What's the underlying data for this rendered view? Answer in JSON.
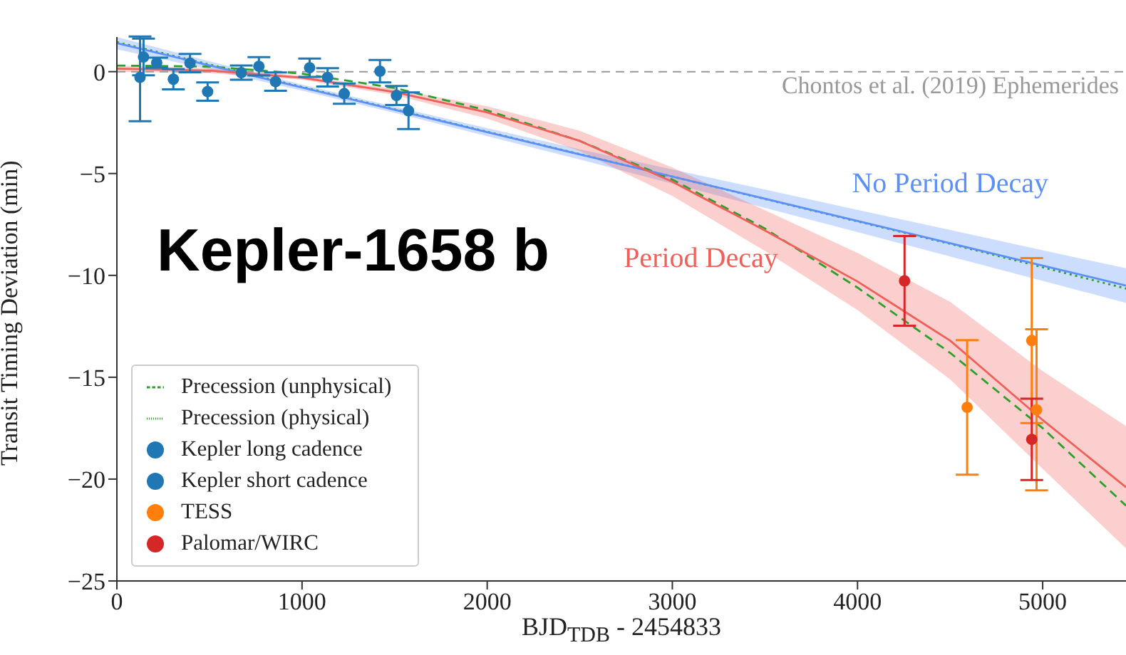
{
  "chart_data": {
    "type": "line",
    "annotations": [
      "Kepler-1658 b"
    ],
    "xlabel": "BJD$_{TDB}$ - 2454833",
    "ylabel": "Transit Timing Deviation (min)",
    "xlim": [
      0,
      5450
    ],
    "xticks": [
      0,
      1000,
      2000,
      3000,
      4000,
      5000
    ],
    "ylim": [
      -25,
      1.7
    ],
    "yticks": [
      {
        "value": -25,
        "label": "−25"
      },
      {
        "value": -20,
        "label": "−20"
      },
      {
        "value": -15,
        "label": "−15"
      },
      {
        "value": -10,
        "label": "−10"
      },
      {
        "value": -5,
        "label": "−5"
      },
      0
    ],
    "legend": "bottom left",
    "ref_lines": [
      {
        "axis": "y",
        "value": 0,
        "label": "Chontos et al. (2019) Ephemerides",
        "color": "#999999",
        "line_style": "dashed"
      }
    ],
    "series": [
      {
        "name": "Precession (unphysical)",
        "color": "#2ca02c",
        "line_style": "dashed",
        "x": [
          0,
          500,
          1000,
          1500,
          2000,
          2500,
          3000,
          3500,
          4000,
          4500,
          5000,
          5450
        ],
        "values": [
          0.3,
          0.25,
          -0.1,
          -0.8,
          -1.9,
          -3.4,
          -5.3,
          -7.7,
          -10.6,
          -13.8,
          -17.5,
          -21.3
        ]
      },
      {
        "name": "Precession (physical)",
        "color": "#2ca02c",
        "line_style": "dotted",
        "x": [
          0,
          500,
          1000,
          1500,
          2000,
          2500,
          3000,
          3500,
          4000,
          4500,
          5000,
          5450
        ],
        "values": [
          1.45,
          0.35,
          -0.75,
          -1.85,
          -2.95,
          -4.05,
          -5.15,
          -6.25,
          -7.35,
          -8.45,
          -9.6,
          -10.65
        ]
      },
      {
        "name": "No Period Decay",
        "color": "#5b8ff9",
        "line_style": "solid",
        "x": [
          0,
          500,
          1000,
          1500,
          2000,
          2500,
          3000,
          3500,
          4000,
          4500,
          5000,
          5450
        ],
        "values": [
          1.4,
          0.31,
          -0.78,
          -1.87,
          -2.97,
          -4.06,
          -5.15,
          -6.24,
          -7.33,
          -8.42,
          -9.52,
          -10.5
        ],
        "lower": [
          1.1,
          0.11,
          -0.93,
          -2.02,
          -3.17,
          -4.31,
          -5.5,
          -6.69,
          -7.88,
          -9.07,
          -10.27,
          -11.35
        ],
        "upper": [
          1.7,
          0.51,
          -0.63,
          -1.72,
          -2.77,
          -3.81,
          -4.8,
          -5.79,
          -6.78,
          -7.77,
          -8.77,
          -9.65
        ]
      },
      {
        "name": "Period Decay",
        "color": "#f0605a",
        "line_style": "solid",
        "x": [
          0,
          500,
          1000,
          1500,
          2000,
          2500,
          3000,
          3500,
          4000,
          4500,
          5000,
          5450
        ],
        "values": [
          0.15,
          0.05,
          -0.3,
          -1.0,
          -2.0,
          -3.4,
          -5.4,
          -7.8,
          -10.3,
          -13.2,
          -17.1,
          -20.4
        ],
        "lower": [
          0.0,
          -0.07,
          -0.4,
          -1.15,
          -2.3,
          -3.9,
          -6.1,
          -8.8,
          -11.7,
          -15.1,
          -19.5,
          -23.4
        ],
        "upper": [
          0.3,
          0.17,
          -0.2,
          -0.85,
          -1.7,
          -2.9,
          -4.7,
          -6.8,
          -8.9,
          -11.3,
          -14.7,
          -17.4
        ]
      },
      {
        "name": "Kepler long cadence",
        "type": "scatter",
        "marker": "circle",
        "color": "#1f77b4",
        "x": [
          125,
          144,
          305,
          395,
          490,
          672,
          857,
          1041,
          1138,
          1228,
          1421,
          1510,
          1575
        ],
        "values": [
          -0.28,
          0.72,
          -0.37,
          0.42,
          -0.98,
          -0.05,
          -0.49,
          0.19,
          -0.28,
          -1.08,
          0.02,
          -1.17,
          -1.92
        ],
        "errors": [
          [
            -2.43,
            1.73
          ],
          0.9,
          0.5,
          0.45,
          0.45,
          0.35,
          0.45,
          0.45,
          0.45,
          0.5,
          0.55,
          0.47,
          0.9
        ]
      },
      {
        "name": "Kepler short cadence",
        "type": "scatter",
        "marker": "circle",
        "color": "#1f77b4",
        "x": [
          215,
          767
        ],
        "values": [
          0.44,
          0.26
        ],
        "errors": [
          0.25,
          0.45
        ]
      },
      {
        "name": "TESS",
        "type": "scatter",
        "marker": "circle",
        "color": "#ff7f0e",
        "x": [
          4592,
          4941,
          4967
        ],
        "values": [
          -16.48,
          -13.2,
          -16.6
        ],
        "errors": [
          3.3,
          4.05,
          3.95
        ]
      },
      {
        "name": "Palomar/WIRC",
        "type": "scatter",
        "marker": "circle",
        "color": "#d62728",
        "x": [
          4254,
          4941
        ],
        "values": [
          -10.27,
          -18.05
        ],
        "errors": [
          2.2,
          2.0
        ]
      }
    ]
  }
}
